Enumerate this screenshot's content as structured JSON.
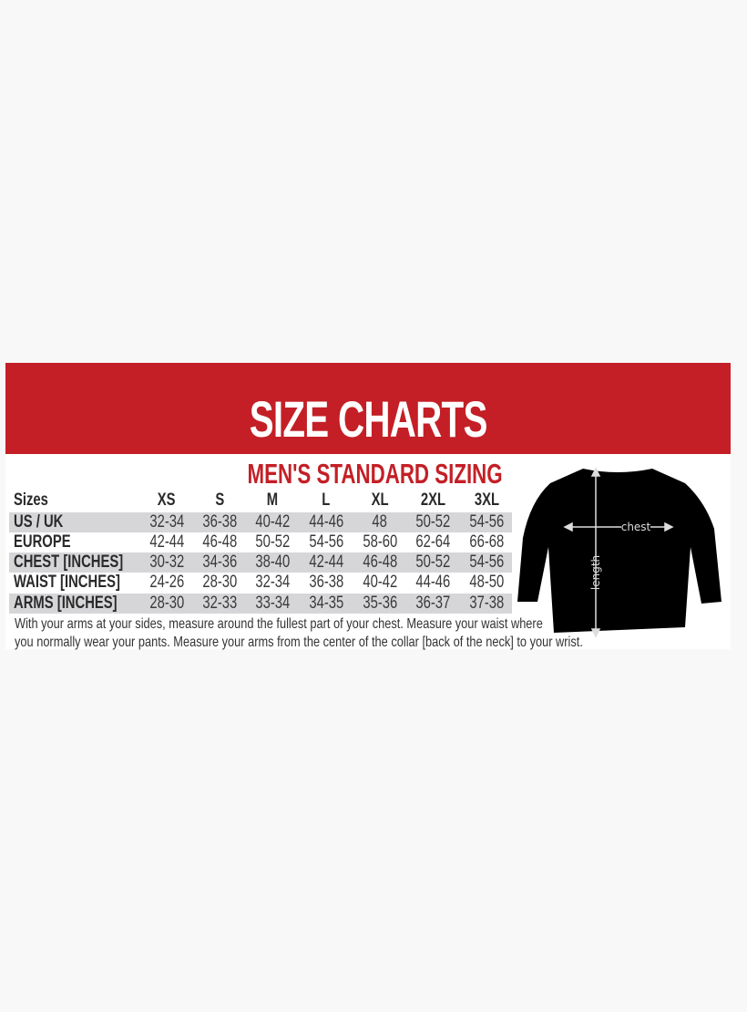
{
  "title": "SIZE CHARTS",
  "subtitle": "MEN'S STANDARD SIZING",
  "table": {
    "header": [
      "Sizes",
      "XS",
      "S",
      "M",
      "L",
      "XL",
      "2XL",
      "3XL"
    ],
    "rows": [
      {
        "label": "US / UK",
        "values": [
          "32-34",
          "36-38",
          "40-42",
          "44-46",
          "48",
          "50-52",
          "54-56"
        ]
      },
      {
        "label": "EUROPE",
        "values": [
          "42-44",
          "46-48",
          "50-52",
          "54-56",
          "58-60",
          "62-64",
          "66-68"
        ]
      },
      {
        "label": "CHEST [INCHES]",
        "values": [
          "30-32",
          "34-36",
          "38-40",
          "42-44",
          "46-48",
          "50-52",
          "54-56"
        ]
      },
      {
        "label": "WAIST [INCHES]",
        "values": [
          "24-26",
          "28-30",
          "32-34",
          "36-38",
          "40-42",
          "44-46",
          "48-50"
        ]
      },
      {
        "label": "ARMS [INCHES]",
        "values": [
          "28-30",
          "32-33",
          "33-34",
          "34-35",
          "35-36",
          "36-37",
          "37-38"
        ]
      }
    ]
  },
  "note": {
    "line1": "With your arms at your sides, measure around the fullest part of your chest. Measure your waist where",
    "line2": "you normally wear your pants. Measure your arms from the center of the collar [back of the neck] to your wrist."
  },
  "diagram": {
    "chest_label": "chest",
    "length_label": "length"
  },
  "colors": {
    "brand_red": "#c41f26",
    "row_shade": "#d6d6d9"
  }
}
